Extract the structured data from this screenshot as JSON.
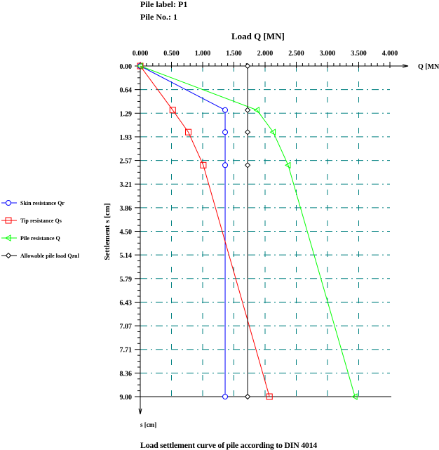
{
  "header": {
    "pile_label": "Pile label: P1",
    "pile_no": "Pile No.: 1"
  },
  "footer": {
    "caption": "Load settlement curve of pile according to DIN 4014"
  },
  "chart_data": {
    "type": "line",
    "title": "Load Q [MN]",
    "xlabel": "Q [MN]",
    "ylabel": "Settlement s [cm]",
    "ylabel_bottom": "s [cm]",
    "xlim": [
      0,
      4
    ],
    "ylim": [
      0,
      9
    ],
    "y_inverted": true,
    "x_axis_position": "top",
    "grid": true,
    "grid_color": "#008080",
    "x_ticks": [
      "0.000",
      "0.500",
      "1.000",
      "1.500",
      "2.000",
      "2.500",
      "3.000",
      "3.500",
      "4.000"
    ],
    "y_ticks": [
      "0.00",
      "0.64",
      "1.29",
      "1.93",
      "2.57",
      "3.21",
      "3.86",
      "4.50",
      "5.14",
      "5.79",
      "6.43",
      "7.07",
      "7.71",
      "8.36",
      "9.00"
    ],
    "legend_position": "left",
    "series": [
      {
        "name": "Skin resistance Qr",
        "color": "#0000ff",
        "marker": "circle",
        "points": [
          [
            0,
            0
          ],
          [
            1.36,
            1.2
          ],
          [
            1.36,
            1.8
          ],
          [
            1.36,
            2.7
          ],
          [
            1.36,
            9.0
          ]
        ]
      },
      {
        "name": "Tip resistance Qs",
        "color": "#ff0000",
        "marker": "square",
        "points": [
          [
            0,
            0
          ],
          [
            0.52,
            1.2
          ],
          [
            0.77,
            1.8
          ],
          [
            1.01,
            2.7
          ],
          [
            2.07,
            9.0
          ]
        ]
      },
      {
        "name": "Pile resistance Q",
        "color": "#00ff00",
        "marker": "triangle-left",
        "points": [
          [
            0,
            0
          ],
          [
            1.87,
            1.2
          ],
          [
            2.13,
            1.8
          ],
          [
            2.37,
            2.7
          ],
          [
            3.44,
            9.0
          ]
        ]
      },
      {
        "name": "Allowable pile load Qzul",
        "color": "#000000",
        "marker": "diamond",
        "points": [
          [
            1.72,
            0
          ],
          [
            1.72,
            1.2
          ],
          [
            1.72,
            1.8
          ],
          [
            1.72,
            2.7
          ],
          [
            1.72,
            9.0
          ]
        ]
      }
    ]
  }
}
